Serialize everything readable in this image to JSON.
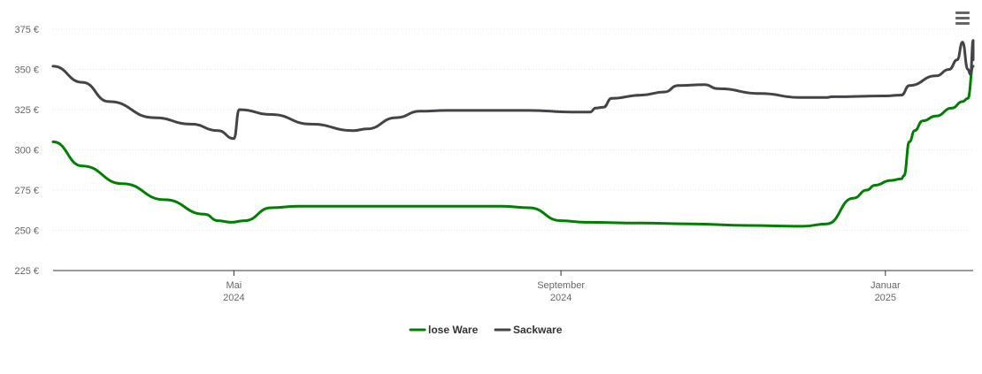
{
  "chart_data": {
    "type": "line",
    "title": "",
    "xlabel": "",
    "ylabel": "",
    "ylim": [
      225,
      375
    ],
    "yticks": [
      "225 €",
      "250 €",
      "275 €",
      "300 €",
      "325 €",
      "350 €",
      "375 €"
    ],
    "yticks_values": [
      225,
      250,
      275,
      300,
      325,
      350,
      375
    ],
    "xticks": [
      {
        "date": "2024-05-01",
        "line1": "Mai",
        "line2": "2024"
      },
      {
        "date": "2024-09-01",
        "line1": "September",
        "line2": "2024"
      },
      {
        "date": "2025-01-01",
        "line1": "Januar",
        "line2": "2025"
      }
    ],
    "xlim": [
      "2024-02-23",
      "2025-02-03"
    ],
    "grid": true,
    "legend_position": "bottom",
    "series": [
      {
        "name": "lose Ware",
        "color": "#008000",
        "points": [
          [
            "2024-02-23",
            305
          ],
          [
            "2024-03-05",
            290
          ],
          [
            "2024-03-20",
            279
          ],
          [
            "2024-04-05",
            269
          ],
          [
            "2024-04-20",
            260
          ],
          [
            "2024-04-25",
            256
          ],
          [
            "2024-04-30",
            255
          ],
          [
            "2024-05-05",
            256
          ],
          [
            "2024-05-15",
            264
          ],
          [
            "2024-05-25",
            265
          ],
          [
            "2024-06-15",
            265
          ],
          [
            "2024-07-15",
            265
          ],
          [
            "2024-08-10",
            265
          ],
          [
            "2024-08-20",
            264
          ],
          [
            "2024-09-01",
            256
          ],
          [
            "2024-09-10",
            255
          ],
          [
            "2024-10-01",
            254.5
          ],
          [
            "2024-10-20",
            254
          ],
          [
            "2024-11-10",
            253
          ],
          [
            "2024-12-01",
            252.5
          ],
          [
            "2024-12-10",
            254
          ],
          [
            "2024-12-20",
            270
          ],
          [
            "2024-12-25",
            275
          ],
          [
            "2024-12-28",
            278
          ],
          [
            "2025-01-03",
            281
          ],
          [
            "2025-01-07",
            282
          ],
          [
            "2025-01-08",
            284
          ],
          [
            "2025-01-10",
            305
          ],
          [
            "2025-01-12",
            312
          ],
          [
            "2025-01-15",
            318
          ],
          [
            "2025-01-20",
            321
          ],
          [
            "2025-01-26",
            326
          ],
          [
            "2025-01-30",
            330
          ],
          [
            "2025-02-01",
            332
          ],
          [
            "2025-02-03",
            352
          ]
        ]
      },
      {
        "name": "Sackware",
        "color": "#434348",
        "points": [
          [
            "2024-02-23",
            352
          ],
          [
            "2024-03-05",
            342
          ],
          [
            "2024-03-15",
            330
          ],
          [
            "2024-04-01",
            320
          ],
          [
            "2024-04-15",
            316
          ],
          [
            "2024-04-25",
            312
          ],
          [
            "2024-05-01",
            307
          ],
          [
            "2024-05-03",
            325
          ],
          [
            "2024-05-15",
            322
          ],
          [
            "2024-05-30",
            316
          ],
          [
            "2024-06-15",
            312
          ],
          [
            "2024-06-20",
            313
          ],
          [
            "2024-07-01",
            320
          ],
          [
            "2024-07-10",
            324
          ],
          [
            "2024-07-20",
            324.5
          ],
          [
            "2024-08-20",
            324.5
          ],
          [
            "2024-09-05",
            323.5
          ],
          [
            "2024-09-12",
            323.5
          ],
          [
            "2024-09-14",
            326
          ],
          [
            "2024-09-17",
            326.5
          ],
          [
            "2024-09-20",
            332
          ],
          [
            "2024-10-01",
            334
          ],
          [
            "2024-10-10",
            336
          ],
          [
            "2024-10-15",
            340
          ],
          [
            "2024-10-25",
            340.5
          ],
          [
            "2024-10-30",
            338
          ],
          [
            "2024-11-15",
            335
          ],
          [
            "2024-11-30",
            332.5
          ],
          [
            "2024-12-10",
            332.5
          ],
          [
            "2024-12-12",
            333
          ],
          [
            "2025-01-01",
            333.5
          ],
          [
            "2025-01-07",
            334
          ],
          [
            "2025-01-10",
            340
          ],
          [
            "2025-01-20",
            346
          ],
          [
            "2025-01-25",
            350
          ],
          [
            "2025-01-28",
            356
          ],
          [
            "2025-01-30",
            367
          ],
          [
            "2025-02-01",
            350
          ],
          [
            "2025-02-02",
            347
          ],
          [
            "2025-02-03",
            368
          ],
          [
            "2025-02-03",
            356
          ]
        ]
      }
    ]
  },
  "menu": {
    "icon": "hamburger-menu-icon"
  }
}
